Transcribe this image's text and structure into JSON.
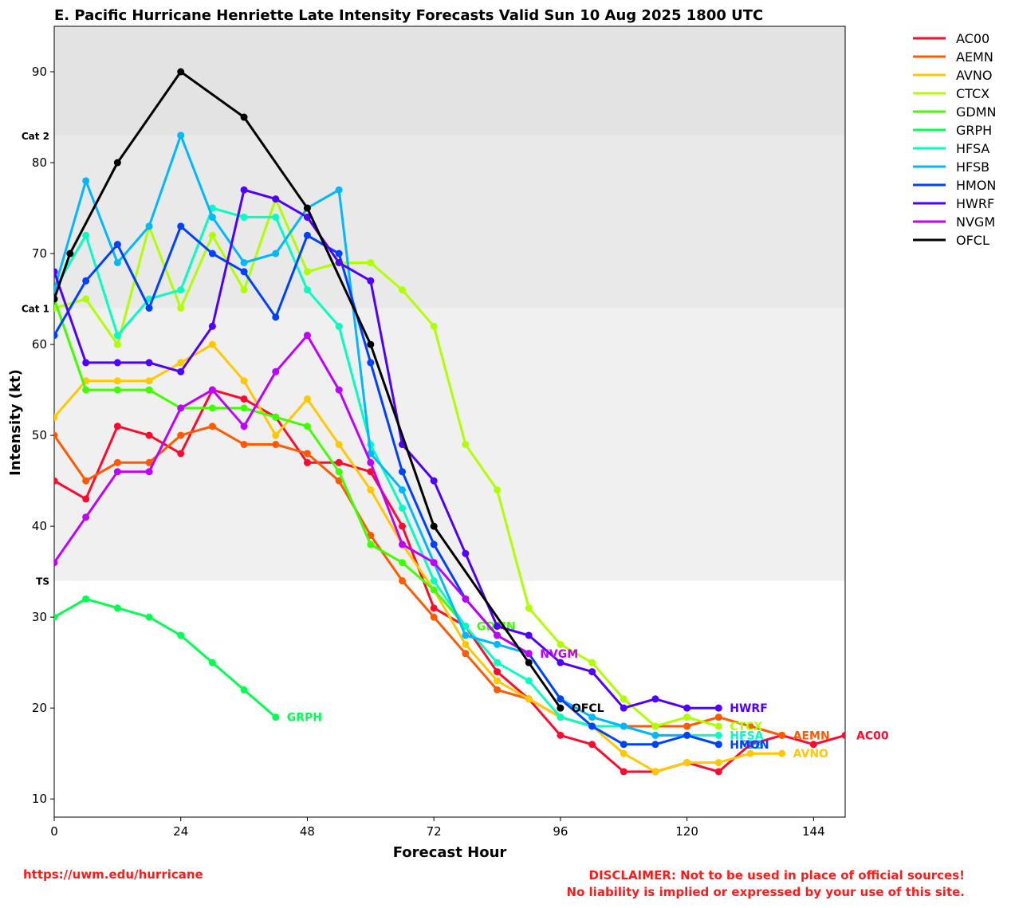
{
  "chart_data": {
    "type": "line",
    "title": "E. Pacific Hurricane Henriette Late Intensity Forecasts Valid Sun 10 Aug 2025 1800 UTC",
    "xlabel": "Forecast Hour",
    "ylabel": "Intensity (kt)",
    "xlim": [
      0,
      150
    ],
    "ylim": [
      8,
      95
    ],
    "x_ticks": [
      0,
      24,
      48,
      72,
      96,
      120,
      144
    ],
    "y_ticks": [
      10,
      20,
      30,
      40,
      50,
      60,
      70,
      80,
      90
    ],
    "bands": [
      {
        "label": "TS",
        "from": 34,
        "to": 64,
        "color": "#f0f0f0"
      },
      {
        "label": "Cat 1",
        "from": 64,
        "to": 83,
        "color": "#e9e9e9"
      },
      {
        "label": "Cat 2",
        "from": 83,
        "to": 95,
        "color": "#e3e3e3"
      }
    ],
    "legend_position": "right, outside plot",
    "series": [
      {
        "name": "AC00",
        "color": "#ff0a2f",
        "x": [
          0,
          6,
          12,
          18,
          24,
          30,
          36,
          42,
          48,
          54,
          60,
          66,
          72,
          78,
          84,
          90,
          96,
          102,
          108,
          114,
          120,
          126,
          132,
          138,
          144,
          150
        ],
        "y": [
          45,
          43,
          51,
          50,
          48,
          55,
          54,
          52,
          47,
          47,
          46,
          40,
          31,
          29,
          24,
          21,
          17,
          16,
          13,
          13,
          14,
          13,
          16,
          17,
          16,
          17
        ]
      },
      {
        "name": "AEMN",
        "color": "#ff5a00",
        "x": [
          0,
          6,
          12,
          18,
          24,
          30,
          36,
          42,
          48,
          54,
          60,
          66,
          72,
          78,
          84,
          90,
          96,
          102,
          108,
          114,
          120,
          126,
          132,
          138
        ],
        "y": [
          50,
          45,
          47,
          47,
          50,
          51,
          49,
          49,
          48,
          45,
          39,
          34,
          30,
          26,
          22,
          21,
          19,
          18,
          18,
          18,
          18,
          19,
          18,
          17
        ]
      },
      {
        "name": "AVNO",
        "color": "#ffc800",
        "x": [
          0,
          6,
          12,
          18,
          24,
          30,
          36,
          42,
          48,
          54,
          60,
          66,
          72,
          78,
          84,
          90,
          96,
          102,
          108,
          114,
          120,
          126,
          132,
          138
        ],
        "y": [
          52,
          56,
          56,
          56,
          58,
          60,
          56,
          50,
          54,
          49,
          44,
          38,
          33,
          27,
          23,
          21,
          19,
          18,
          15,
          13,
          14,
          14,
          15,
          15
        ]
      },
      {
        "name": "CTCX",
        "color": "#b0ff00",
        "x": [
          0,
          6,
          12,
          18,
          24,
          30,
          36,
          42,
          48,
          54,
          60,
          66,
          72,
          78,
          84,
          90,
          96,
          102,
          108,
          114,
          120,
          126
        ],
        "y": [
          64,
          65,
          60,
          73,
          64,
          72,
          66,
          76,
          68,
          69,
          69,
          66,
          62,
          49,
          44,
          31,
          27,
          25,
          21,
          18,
          19,
          18
        ]
      },
      {
        "name": "GDMN",
        "color": "#40ff00",
        "x": [
          0,
          6,
          12,
          18,
          24,
          30,
          36,
          42,
          48,
          54,
          60,
          66,
          72,
          78
        ],
        "y": [
          65,
          55,
          55,
          55,
          53,
          53,
          53,
          52,
          51,
          46,
          38,
          36,
          33,
          29
        ]
      },
      {
        "name": "GRPH",
        "color": "#00ff50",
        "x": [
          0,
          6,
          12,
          18,
          24,
          30,
          36,
          42
        ],
        "y": [
          30,
          32,
          31,
          30,
          28,
          25,
          22,
          19
        ]
      },
      {
        "name": "HFSA",
        "color": "#00ffc0",
        "x": [
          0,
          6,
          12,
          18,
          24,
          30,
          36,
          42,
          48,
          54,
          60,
          66,
          72,
          78,
          84,
          90,
          96,
          102,
          108,
          114,
          120,
          126
        ],
        "y": [
          66,
          72,
          61,
          65,
          66,
          75,
          74,
          74,
          66,
          62,
          49,
          42,
          34,
          29,
          25,
          23,
          19,
          18,
          18,
          17,
          17,
          17
        ]
      },
      {
        "name": "HFSB",
        "color": "#00b8ff",
        "x": [
          0,
          6,
          12,
          18,
          24,
          30,
          36,
          42,
          48,
          54,
          60,
          66,
          72,
          78,
          84,
          90,
          96,
          102,
          108,
          114,
          120,
          126
        ],
        "y": [
          66,
          78,
          69,
          73,
          83,
          74,
          69,
          70,
          75,
          77,
          48,
          44,
          36,
          28,
          27,
          26,
          21,
          19,
          18,
          17,
          17,
          16
        ]
      },
      {
        "name": "HMON",
        "color": "#0040ff",
        "x": [
          0,
          6,
          12,
          18,
          24,
          30,
          36,
          42,
          48,
          54,
          60,
          66,
          72,
          78,
          84,
          90,
          96,
          102,
          108,
          114,
          120,
          126
        ],
        "y": [
          61,
          67,
          71,
          64,
          73,
          70,
          68,
          63,
          72,
          70,
          58,
          46,
          38,
          32,
          28,
          26,
          21,
          18,
          16,
          16,
          17,
          16
        ]
      },
      {
        "name": "HWRF",
        "color": "#5000ff",
        "x": [
          0,
          6,
          12,
          18,
          24,
          30,
          36,
          42,
          48,
          54,
          60,
          66,
          72,
          78,
          84,
          90,
          96,
          102,
          108,
          114,
          120,
          126
        ],
        "y": [
          68,
          58,
          58,
          58,
          57,
          62,
          77,
          76,
          74,
          69,
          67,
          49,
          45,
          37,
          29,
          28,
          25,
          24,
          20,
          21,
          20,
          20
        ]
      },
      {
        "name": "NVGM",
        "color": "#c000ff",
        "x": [
          0,
          6,
          12,
          18,
          24,
          30,
          36,
          42,
          48,
          54,
          60,
          66,
          72,
          78,
          84,
          90
        ],
        "y": [
          36,
          41,
          46,
          46,
          53,
          55,
          51,
          57,
          61,
          55,
          47,
          38,
          36,
          32,
          28,
          26
        ]
      },
      {
        "name": "OFCL",
        "color": "#000000",
        "x": [
          0,
          3,
          12,
          24,
          36,
          48,
          60,
          72,
          90,
          96
        ],
        "y": [
          65,
          70,
          80,
          90,
          85,
          75,
          60,
          40,
          25,
          20
        ]
      }
    ]
  },
  "footer": {
    "url": "https://uwm.edu/hurricane",
    "disclaimer_line1": "DISCLAIMER: Not to be used in place of official sources!",
    "disclaimer_line2": "No liability is implied or expressed by your use of this site."
  }
}
